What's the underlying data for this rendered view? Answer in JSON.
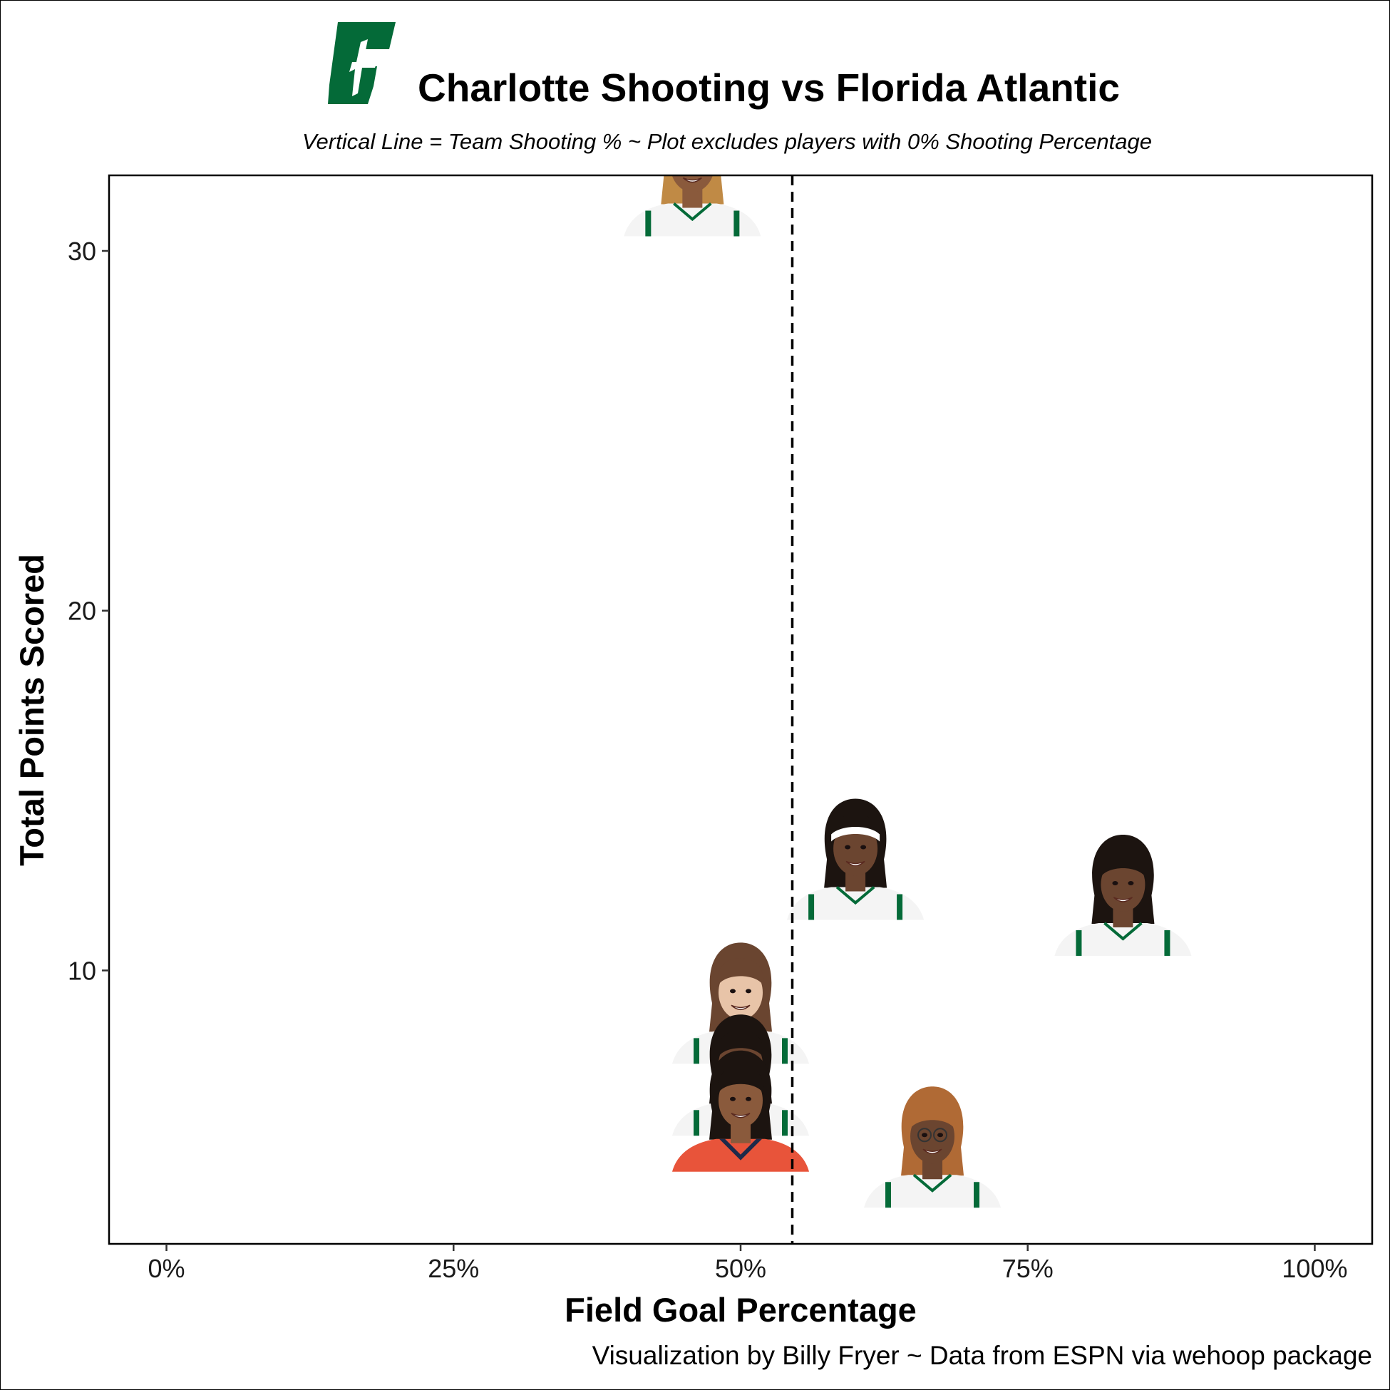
{
  "title": "Charlotte Shooting vs Florida Atlantic",
  "subtitle": "Vertical Line = Team Shooting % ~ Plot excludes players with 0% Shooting Percentage",
  "caption": "Visualization by Billy Fryer ~ Data from ESPN via wehoop package",
  "colors": {
    "brand_green": "#046A38",
    "jersey_white": "#f4f4f4",
    "fau_orange": "#e8543a",
    "fau_navy": "#1d2a4a",
    "skin_dark": "#6b4530",
    "skin_medium": "#8a5a3c",
    "skin_light": "#e8c4a8",
    "hair_dark": "#1c1410",
    "hair_brown": "#6a4530",
    "hair_blonde": "#c08a45",
    "hair_copper": "#b06a35"
  },
  "chart_data": {
    "type": "scatter",
    "title": "Charlotte Shooting vs Florida Atlantic",
    "subtitle": "Vertical Line = Team Shooting % ~ Plot excludes players with 0% Shooting Percentage",
    "xlabel": "Field Goal Percentage",
    "ylabel": "Total Points Scored",
    "xlim": [
      -0.05,
      1.05
    ],
    "ylim": [
      2.4,
      32.1
    ],
    "x_ticks": [
      0,
      0.25,
      0.5,
      0.75,
      1.0
    ],
    "x_tick_labels": [
      "0%",
      "25%",
      "50%",
      "75%",
      "100%"
    ],
    "y_ticks": [
      10,
      20,
      30
    ],
    "y_tick_labels": [
      "10",
      "20",
      "30"
    ],
    "team_shooting_pct": 0.545,
    "team_line_style": "dashed",
    "grid": false,
    "legend": "none",
    "point_marker": "player headshot",
    "points": [
      {
        "x": 0.458,
        "y": 31,
        "jersey": "white",
        "hair": "blonde",
        "skin": "medium"
      },
      {
        "x": 0.6,
        "y": 12,
        "jersey": "white",
        "hair": "dark",
        "skin": "dark",
        "headband": true
      },
      {
        "x": 0.833,
        "y": 11,
        "jersey": "white",
        "hair": "dark",
        "skin": "dark"
      },
      {
        "x": 0.5,
        "y": 8,
        "jersey": "white",
        "hair": "brown",
        "skin": "light"
      },
      {
        "x": 0.5,
        "y": 6,
        "jersey": "white",
        "hair": "dark",
        "skin": "dark"
      },
      {
        "x": 0.5,
        "y": 5,
        "jersey": "orange",
        "hair": "dark",
        "skin": "medium"
      },
      {
        "x": 0.667,
        "y": 4,
        "jersey": "white",
        "hair": "copper",
        "skin": "dark",
        "glasses": true
      }
    ]
  }
}
